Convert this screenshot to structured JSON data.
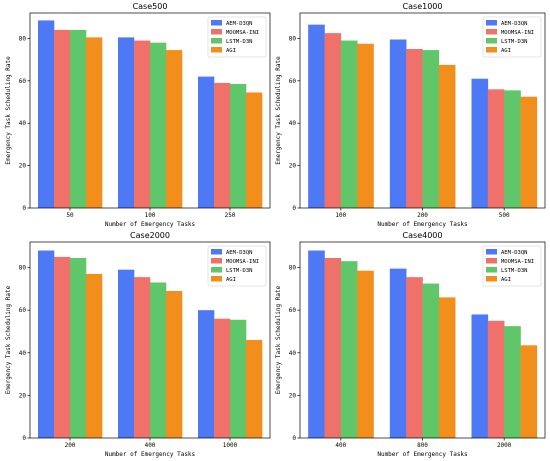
{
  "chart_data": [
    {
      "type": "bar",
      "title": "Case500",
      "xlabel": "Number of Emergency Tasks",
      "ylabel": "Emergency Task Scheduling Rate",
      "categories": [
        "50",
        "100",
        "250"
      ],
      "ylim": [
        0,
        92
      ],
      "yticks": [
        0,
        20,
        40,
        60,
        80
      ],
      "legend_position": "top-right",
      "series": [
        {
          "name": "AEM-D3QN",
          "color": "#4e79f5",
          "values": [
            88.5,
            80.5,
            62.0
          ]
        },
        {
          "name": "MOOMSA-INI",
          "color": "#f0706a",
          "values": [
            84.0,
            79.0,
            59.0
          ]
        },
        {
          "name": "LSTM-D3N",
          "color": "#5fc76a",
          "values": [
            84.0,
            78.0,
            58.5
          ]
        },
        {
          "name": "AGI",
          "color": "#f28e1c",
          "values": [
            80.5,
            74.5,
            54.5
          ]
        }
      ]
    },
    {
      "type": "bar",
      "title": "Case1000",
      "xlabel": "Number of Emergency Tasks",
      "ylabel": "Emergency Task Scheduling Rate",
      "categories": [
        "100",
        "200",
        "500"
      ],
      "ylim": [
        0,
        92
      ],
      "yticks": [
        0,
        20,
        40,
        60,
        80
      ],
      "legend_position": "top-right",
      "series": [
        {
          "name": "AEM-D3QN",
          "color": "#4e79f5",
          "values": [
            86.5,
            79.5,
            61.0
          ]
        },
        {
          "name": "MOOMSA-INI",
          "color": "#f0706a",
          "values": [
            82.5,
            75.0,
            56.0
          ]
        },
        {
          "name": "LSTM-D3N",
          "color": "#5fc76a",
          "values": [
            79.0,
            74.5,
            55.5
          ]
        },
        {
          "name": "AGI",
          "color": "#f28e1c",
          "values": [
            77.5,
            67.5,
            52.5
          ]
        }
      ]
    },
    {
      "type": "bar",
      "title": "Case2000",
      "xlabel": "Number of Emergency Tasks",
      "ylabel": "Emergency Task Scheduling Rate",
      "categories": [
        "200",
        "400",
        "1000"
      ],
      "ylim": [
        0,
        92
      ],
      "yticks": [
        0,
        20,
        40,
        60,
        80
      ],
      "legend_position": "top-right",
      "series": [
        {
          "name": "AEM-D3QN",
          "color": "#4e79f5",
          "values": [
            88.0,
            79.0,
            60.0
          ]
        },
        {
          "name": "MOOMSA-INI",
          "color": "#f0706a",
          "values": [
            85.0,
            75.5,
            56.0
          ]
        },
        {
          "name": "LSTM-D3N",
          "color": "#5fc76a",
          "values": [
            84.5,
            73.0,
            55.5
          ]
        },
        {
          "name": "AGI",
          "color": "#f28e1c",
          "values": [
            77.0,
            69.0,
            46.0
          ]
        }
      ]
    },
    {
      "type": "bar",
      "title": "Case4000",
      "xlabel": "Number of Emergency Tasks",
      "ylabel": "Emergency Task Scheduling Rate",
      "categories": [
        "400",
        "800",
        "2000"
      ],
      "ylim": [
        0,
        92
      ],
      "yticks": [
        0,
        20,
        40,
        60,
        80
      ],
      "legend_position": "top-right",
      "series": [
        {
          "name": "AEM-D3QN",
          "color": "#4e79f5",
          "values": [
            88.0,
            79.5,
            58.0
          ]
        },
        {
          "name": "MOOMSA-INI",
          "color": "#f0706a",
          "values": [
            84.5,
            75.5,
            55.0
          ]
        },
        {
          "name": "LSTM-D3N",
          "color": "#5fc76a",
          "values": [
            83.0,
            72.5,
            52.5
          ]
        },
        {
          "name": "AGI",
          "color": "#f28e1c",
          "values": [
            78.5,
            66.0,
            43.5
          ]
        }
      ]
    }
  ]
}
